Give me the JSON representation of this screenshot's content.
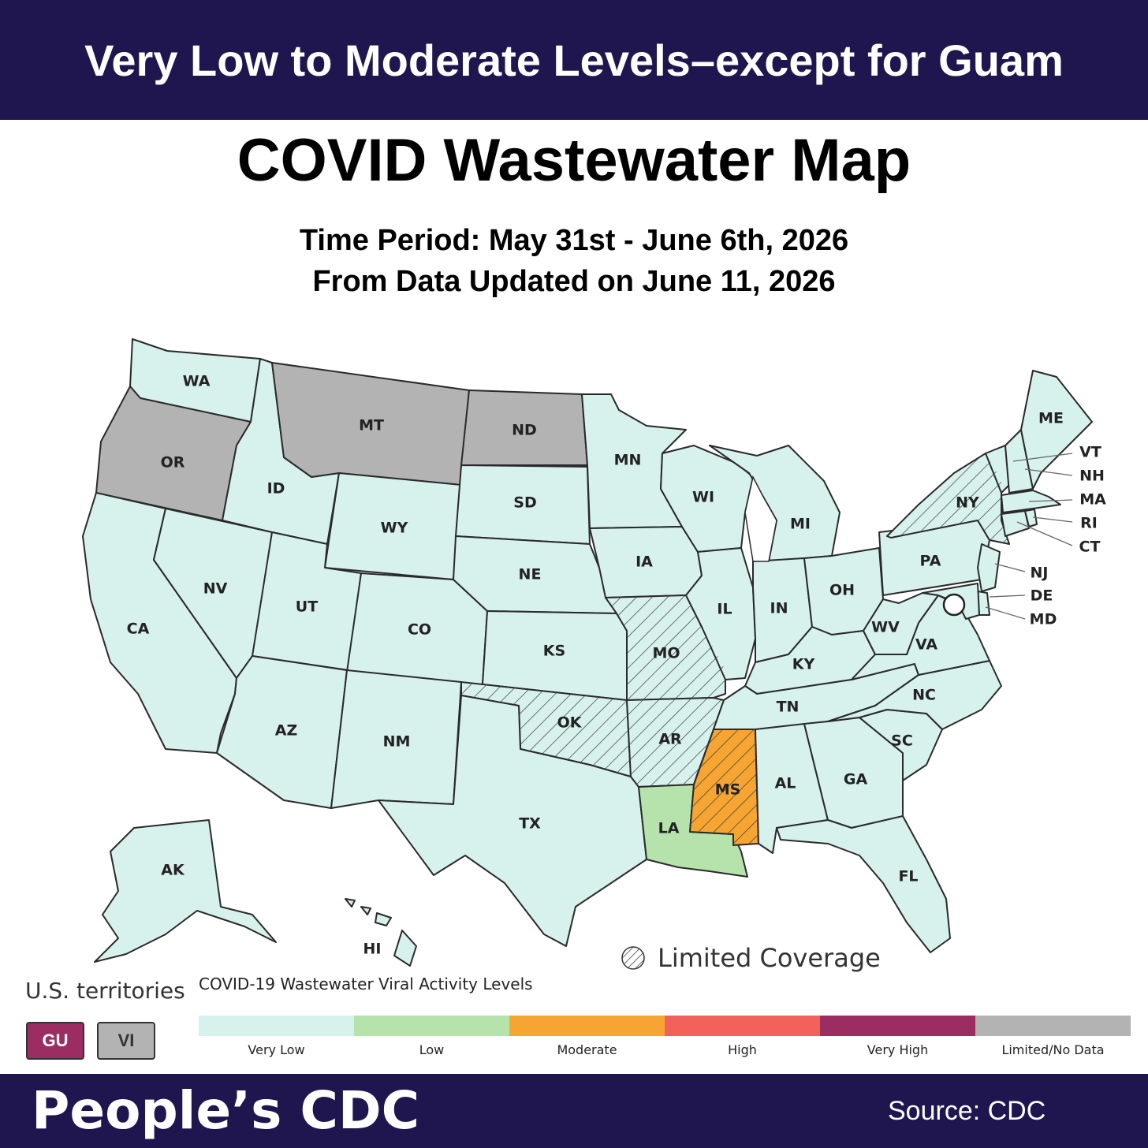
{
  "banner": {
    "headline": "Very Low to Moderate Levels–except for Guam"
  },
  "title": "COVID Wastewater Map",
  "time_period": "Time Period: May 31st - June 6th, 2026",
  "updated": "From Data Updated on June 11, 2026",
  "colors": {
    "very_low": "#d7f1ed",
    "low": "#b6e3ab",
    "moderate": "#f6a533",
    "high": "#f2625a",
    "very_high": "#9c2d63",
    "no_data": "#b3b3b3",
    "banner": "#1f164f"
  },
  "states": {
    "WA": "very_low",
    "OR": "no_data",
    "CA": "very_low",
    "NV": "very_low",
    "ID": "very_low",
    "MT": "no_data",
    "WY": "very_low",
    "UT": "very_low",
    "AZ": "very_low",
    "CO": "very_low",
    "NM": "very_low",
    "ND": "no_data",
    "SD": "very_low",
    "NE": "very_low",
    "KS": "very_low",
    "OK": "very_low",
    "TX": "very_low",
    "MN": "very_low",
    "IA": "very_low",
    "MO": "very_low",
    "AR": "very_low",
    "LA": "low",
    "WI": "very_low",
    "IL": "very_low",
    "MI": "very_low",
    "IN": "very_low",
    "OH": "very_low",
    "KY": "very_low",
    "TN": "very_low",
    "MS": "moderate",
    "AL": "very_low",
    "GA": "very_low",
    "FL": "very_low",
    "SC": "very_low",
    "NC": "very_low",
    "VA": "very_low",
    "WV": "very_low",
    "PA": "very_low",
    "NY": "very_low",
    "ME": "very_low",
    "VT": "very_low",
    "NH": "very_low",
    "MA": "very_low",
    "RI": "very_low",
    "CT": "very_low",
    "NJ": "very_low",
    "DE": "very_low",
    "MD": "very_low",
    "AK": "very_low",
    "HI": "very_low"
  },
  "limited_coverage_states": [
    "NY",
    "MO",
    "OK",
    "AR",
    "MS"
  ],
  "limited_coverage_label": "Limited Coverage",
  "territories": {
    "title": "U.S. territories",
    "items": [
      {
        "code": "GU",
        "level": "very_high"
      },
      {
        "code": "VI",
        "level": "no_data"
      }
    ]
  },
  "legend": {
    "title": "COVID-19 Wastewater Viral Activity Levels",
    "levels": [
      {
        "key": "very_low",
        "label": "Very Low"
      },
      {
        "key": "low",
        "label": "Low"
      },
      {
        "key": "moderate",
        "label": "Moderate"
      },
      {
        "key": "high",
        "label": "High"
      },
      {
        "key": "very_high",
        "label": "Very High"
      },
      {
        "key": "no_data",
        "label": "Limited/No Data"
      }
    ]
  },
  "footer": {
    "brand": "People’s CDC",
    "source": "Source: CDC"
  }
}
